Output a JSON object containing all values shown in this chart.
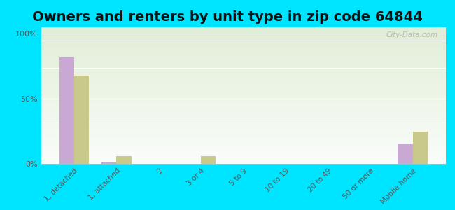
{
  "title": "Owners and renters by unit type in zip code 64844",
  "categories": [
    "1, detached",
    "1, attached",
    "2",
    "3 or 4",
    "5 to 9",
    "10 to 19",
    "20 to 49",
    "50 or more",
    "Mobile home"
  ],
  "owner_values": [
    82,
    1,
    0,
    0,
    0,
    0,
    0,
    0,
    15
  ],
  "renter_values": [
    68,
    6,
    0,
    6,
    0,
    0,
    0,
    0,
    25
  ],
  "owner_color": "#c9a8d4",
  "renter_color": "#c8c98a",
  "background_color": "#00e5ff",
  "title_fontsize": 14,
  "ylabel_ticks": [
    0,
    50,
    100
  ],
  "ylabel_labels": [
    "0%",
    "50%",
    "100%"
  ],
  "ylim": [
    0,
    105
  ],
  "bar_width": 0.35,
  "watermark": "City-Data.com",
  "grid_color": "#e0e8d0",
  "tick_label_color": "#555555"
}
